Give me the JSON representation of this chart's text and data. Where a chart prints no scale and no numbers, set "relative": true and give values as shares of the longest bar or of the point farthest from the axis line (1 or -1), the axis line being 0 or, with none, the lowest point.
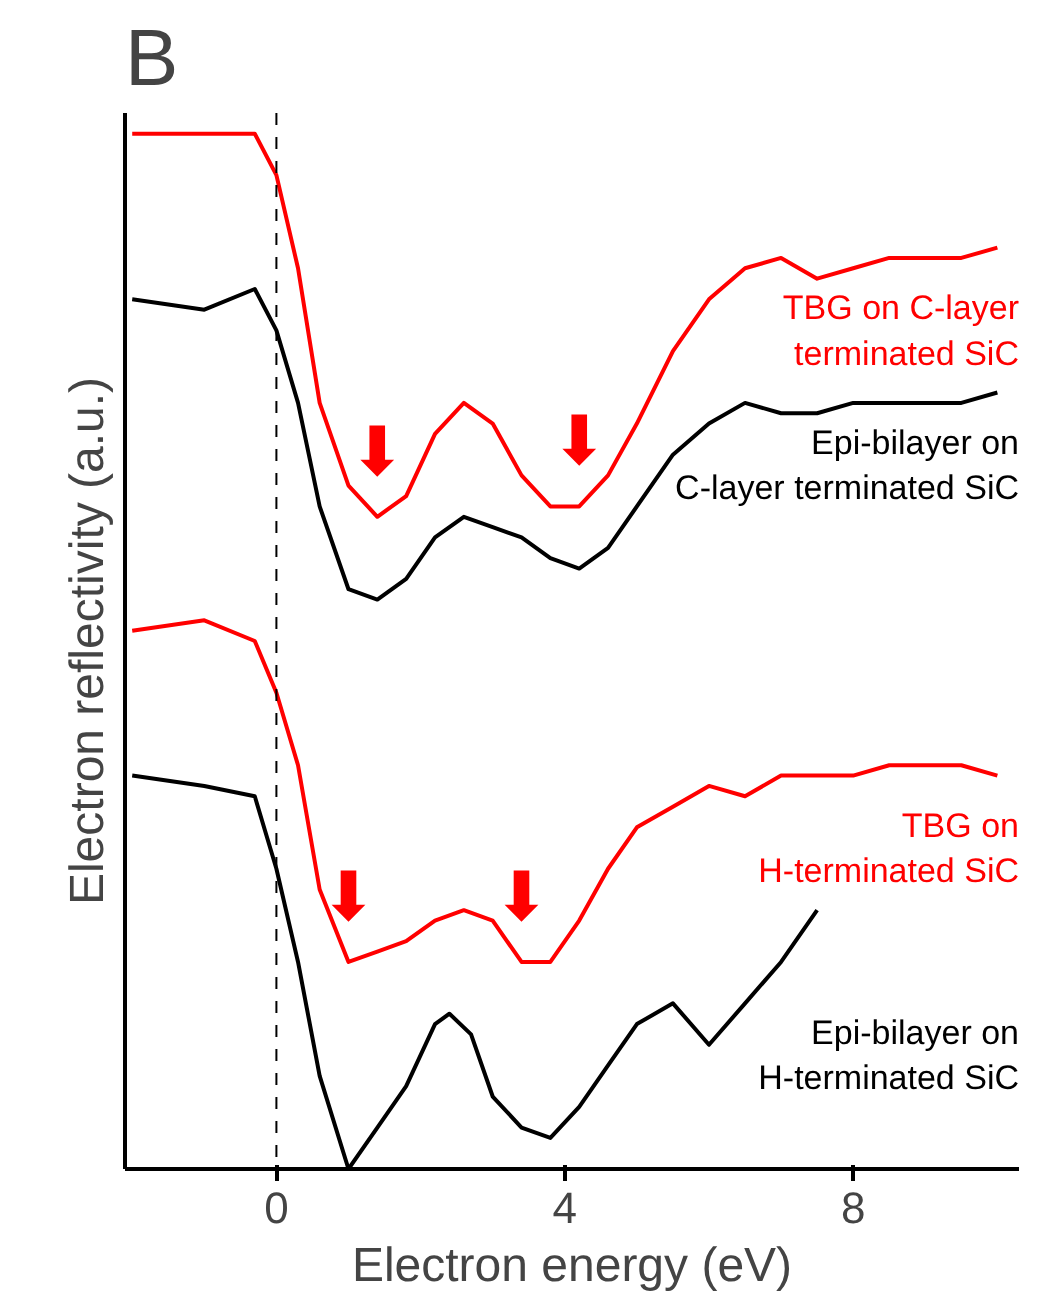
{
  "chart_data": {
    "type": "line",
    "title": "B",
    "xlabel": "Electron energy (eV)",
    "ylabel": "Electron reflectivity (a.u.)",
    "relative": true,
    "xlim": [
      -2.1,
      10.3
    ],
    "xticks": [
      0,
      4,
      8
    ],
    "grid": false,
    "tick_labels": "x",
    "marker": "none",
    "line_style": "solid",
    "x": [
      -2,
      -1,
      -0.3,
      0,
      0.3,
      0.6,
      1,
      1.4,
      1.8,
      2.2,
      2.6,
      3,
      3.4,
      3.8,
      4.2,
      4.6,
      5,
      5.5,
      6,
      6.5,
      7,
      7.5,
      8,
      8.5,
      9,
      9.5,
      10
    ],
    "series": [
      {
        "name": "TBG on C-layer terminated SiC",
        "color": "#ff0000",
        "values": [
          1,
          1,
          1,
          0.96,
          0.87,
          0.74,
          0.66,
          0.63,
          0.65,
          0.71,
          0.74,
          0.72,
          0.67,
          0.64,
          0.64,
          0.67,
          0.72,
          0.79,
          0.84,
          0.87,
          0.88,
          0.86,
          0.87,
          0.88,
          0.88,
          0.88,
          0.89
        ]
      },
      {
        "name": "Epi-bilayer on C-layer terminated SiC",
        "color": "#000000",
        "values": [
          0.84,
          0.83,
          0.85,
          0.81,
          0.74,
          0.64,
          0.56,
          0.55,
          0.57,
          0.61,
          0.63,
          0.62,
          0.61,
          0.59,
          0.58,
          0.6,
          0.64,
          0.69,
          0.72,
          0.74,
          0.73,
          0.73,
          0.74,
          0.74,
          0.74,
          0.74,
          0.75
        ]
      },
      {
        "name": "TBG on H-terminated SiC",
        "color": "#ff0000",
        "values": [
          0.52,
          0.53,
          0.51,
          0.46,
          0.39,
          0.27,
          0.2,
          0.21,
          0.22,
          0.24,
          0.25,
          0.24,
          0.2,
          0.2,
          0.24,
          0.29,
          0.33,
          0.35,
          0.37,
          0.36,
          0.38,
          0.38,
          0.38,
          0.39,
          0.39,
          0.39,
          0.38
        ]
      },
      {
        "name": "Epi-bilayer on H-terminated SiC",
        "color": "#000000",
        "x": [
          -2,
          -1,
          -0.3,
          0,
          0.3,
          0.6,
          1,
          1.4,
          1.8,
          2.2,
          2.4,
          2.7,
          3,
          3.4,
          3.8,
          4.2,
          4.6,
          5,
          5.5,
          6,
          6.5,
          7,
          7.5
        ],
        "values": [
          0.38,
          0.37,
          0.36,
          0.29,
          0.2,
          0.09,
          0.0,
          0.04,
          0.08,
          0.14,
          0.15,
          0.13,
          0.07,
          0.04,
          0.03,
          0.06,
          0.1,
          0.14,
          0.16,
          0.12,
          0.16,
          0.2,
          0.25
        ]
      }
    ],
    "ref_lines": [
      {
        "axis": "x",
        "value": 0,
        "color": "#000000",
        "line_style": "dashed"
      }
    ],
    "annotations": [
      {
        "text": "⬇",
        "x": 1.4,
        "y": 0.63
      },
      {
        "text": "⬇",
        "x": 4.2,
        "y": 0.64
      },
      {
        "text": "⬇",
        "x": 1,
        "y": 0.2
      },
      {
        "text": "⬇",
        "x": 3.4,
        "y": 0.2
      }
    ]
  }
}
